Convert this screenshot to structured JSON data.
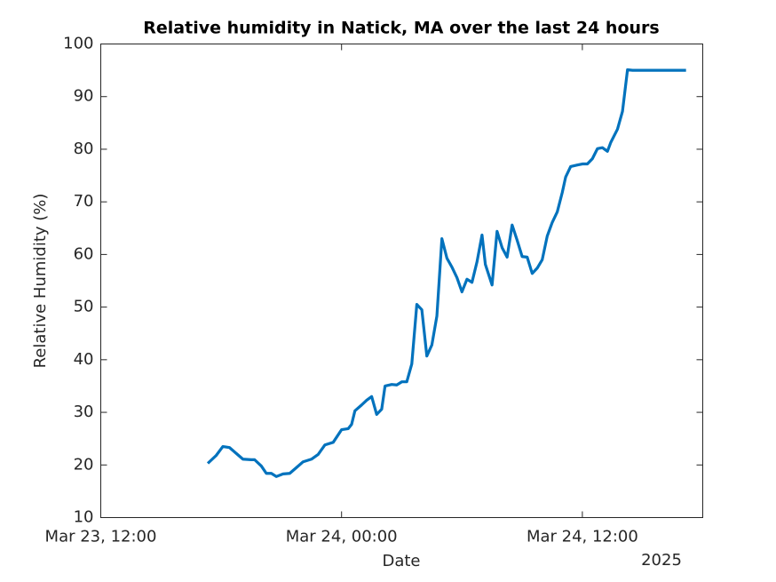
{
  "chart_data": {
    "type": "line",
    "title": "Relative humidity in Natick, MA over the last 24 hours",
    "x_label": "Date",
    "x_secondary_label": "2025",
    "y_label": "Relative Humidity (%)",
    "x": [
      "2025-03-23T17:20",
      "2025-03-23T17:45",
      "2025-03-23T18:05",
      "2025-03-23T18:25",
      "2025-03-23T18:45",
      "2025-03-23T19:05",
      "2025-03-23T19:30",
      "2025-03-23T19:40",
      "2025-03-23T20:00",
      "2025-03-23T20:15",
      "2025-03-23T20:30",
      "2025-03-23T20:45",
      "2025-03-23T21:05",
      "2025-03-23T21:25",
      "2025-03-23T21:45",
      "2025-03-23T22:05",
      "2025-03-23T22:30",
      "2025-03-23T22:50",
      "2025-03-23T23:10",
      "2025-03-23T23:35",
      "2025-03-24T00:00",
      "2025-03-24T00:20",
      "2025-03-24T00:30",
      "2025-03-24T00:40",
      "2025-03-24T01:00",
      "2025-03-24T01:15",
      "2025-03-24T01:30",
      "2025-03-24T01:45",
      "2025-03-24T02:00",
      "2025-03-24T02:10",
      "2025-03-24T02:30",
      "2025-03-24T02:45",
      "2025-03-24T03:00",
      "2025-03-24T03:15",
      "2025-03-24T03:30",
      "2025-03-24T03:45",
      "2025-03-24T04:00",
      "2025-03-24T04:15",
      "2025-03-24T04:30",
      "2025-03-24T04:45",
      "2025-03-24T05:00",
      "2025-03-24T05:15",
      "2025-03-24T05:30",
      "2025-03-24T05:45",
      "2025-03-24T06:00",
      "2025-03-24T06:15",
      "2025-03-24T06:30",
      "2025-03-24T06:45",
      "2025-03-24T07:00",
      "2025-03-24T07:10",
      "2025-03-24T07:30",
      "2025-03-24T07:45",
      "2025-03-24T08:00",
      "2025-03-24T08:15",
      "2025-03-24T08:30",
      "2025-03-24T08:45",
      "2025-03-24T09:00",
      "2025-03-24T09:15",
      "2025-03-24T09:30",
      "2025-03-24T09:45",
      "2025-03-24T10:00",
      "2025-03-24T10:15",
      "2025-03-24T10:30",
      "2025-03-24T10:45",
      "2025-03-24T11:00",
      "2025-03-24T11:10",
      "2025-03-24T11:25",
      "2025-03-24T11:45",
      "2025-03-24T12:00",
      "2025-03-24T12:15",
      "2025-03-24T12:30",
      "2025-03-24T12:45",
      "2025-03-24T13:00",
      "2025-03-24T13:15",
      "2025-03-24T13:25",
      "2025-03-24T13:45",
      "2025-03-24T14:00",
      "2025-03-24T14:15",
      "2025-03-24T14:30",
      "2025-03-24T17:10"
    ],
    "series": [
      {
        "name": "Relative humidity",
        "color": "#0072bd",
        "values": [
          20.3,
          21.8,
          23.5,
          23.3,
          22.2,
          21.1,
          21.0,
          21.0,
          19.8,
          18.4,
          18.4,
          17.8,
          18.3,
          18.4,
          19.5,
          20.6,
          21.1,
          22.0,
          23.8,
          24.3,
          26.7,
          26.9,
          27.7,
          30.3,
          31.4,
          32.3,
          33.0,
          29.6,
          30.6,
          35.0,
          35.3,
          35.2,
          35.8,
          35.8,
          39.2,
          50.5,
          49.5,
          40.7,
          42.8,
          48.3,
          63.0,
          59.3,
          57.6,
          55.6,
          52.9,
          55.3,
          54.7,
          58.6,
          63.7,
          58.1,
          54.2,
          64.4,
          61.3,
          59.5,
          65.6,
          62.7,
          59.6,
          59.5,
          56.4,
          57.4,
          59.0,
          63.5,
          66.1,
          68.1,
          71.8,
          74.7,
          76.7,
          77.0,
          77.2,
          77.2,
          78.2,
          80.1,
          80.3,
          79.6,
          81.3,
          83.8,
          87.2,
          95.1,
          95.0,
          95.0
        ]
      }
    ],
    "xlim": [
      "2025-03-23T12:00",
      "2025-03-24T18:00"
    ],
    "xticks": [
      {
        "value": "2025-03-23T12:00",
        "label": "Mar 23, 12:00"
      },
      {
        "value": "2025-03-24T00:00",
        "label": "Mar 24, 00:00"
      },
      {
        "value": "2025-03-24T12:00",
        "label": "Mar 24, 12:00"
      }
    ],
    "ylim": [
      10,
      100
    ],
    "yticks": [
      10,
      20,
      30,
      40,
      50,
      60,
      70,
      80,
      90,
      100
    ],
    "grid": false
  }
}
